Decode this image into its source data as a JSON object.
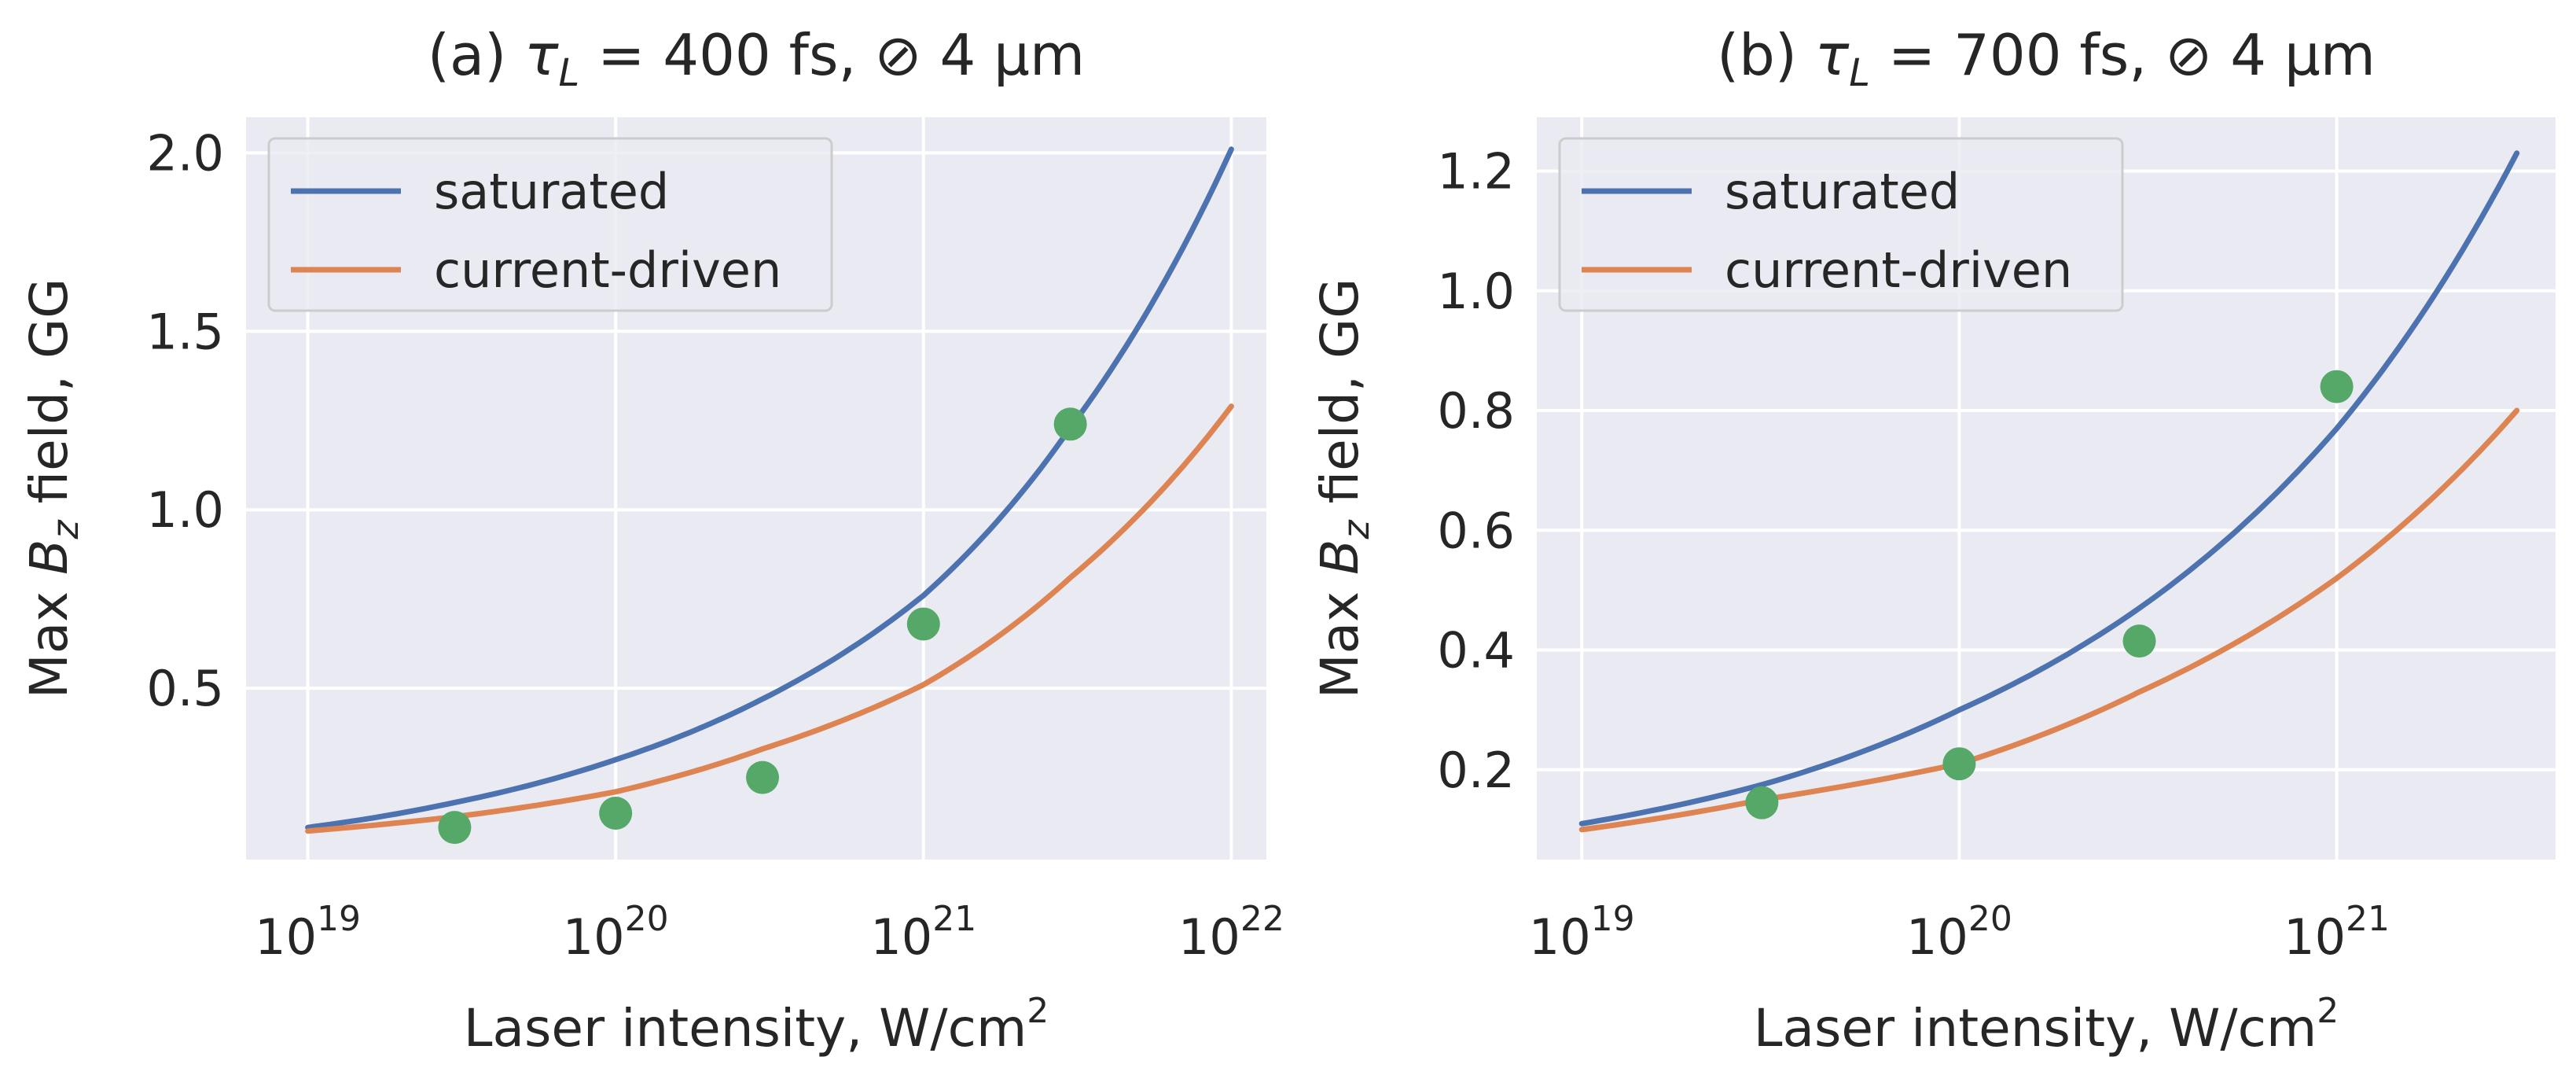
{
  "chart_data": [
    {
      "type": "line",
      "title": {
        "prefix": "(a) ",
        "tau": "τ",
        "tau_sub": "L",
        "rest": " = 400 fs, ⊘ 4 μm"
      },
      "xlabel": {
        "text": "Laser intensity, W/cm",
        "sup": "2"
      },
      "ylabel": {
        "prefix": "Max ",
        "var": "B",
        "var_sub": "z",
        "rest": " field, GG"
      },
      "xscale": "log",
      "xlim": [
        6.3e+18,
        1.3e+22
      ],
      "ylim": [
        0.02,
        2.1
      ],
      "xticks": [
        1e+19,
        1e+20,
        1e+21,
        1e+22
      ],
      "xtick_labels": [
        {
          "base": "10",
          "exp": "19"
        },
        {
          "base": "10",
          "exp": "20"
        },
        {
          "base": "10",
          "exp": "21"
        },
        {
          "base": "10",
          "exp": "22"
        }
      ],
      "yticks": [
        0.5,
        1.0,
        1.5,
        2.0
      ],
      "ytick_labels": [
        "0.5",
        "1.0",
        "1.5",
        "2.0"
      ],
      "grid": true,
      "legend_position": "top-left",
      "series": [
        {
          "name": "saturated",
          "color": "#4c72b0",
          "kind": "line",
          "x": [
            1e+19,
            3e+19,
            1e+20,
            3e+20,
            1e+21,
            3e+21,
            1e+22
          ],
          "y": [
            0.11,
            0.18,
            0.3,
            0.47,
            0.76,
            1.23,
            2.01
          ]
        },
        {
          "name": "current-driven",
          "color": "#dd8452",
          "kind": "line",
          "x": [
            1e+19,
            3e+19,
            1e+20,
            3e+20,
            1e+21,
            3e+21,
            1e+22
          ],
          "y": [
            0.1,
            0.14,
            0.21,
            0.33,
            0.51,
            0.81,
            1.29
          ]
        },
        {
          "name": "",
          "color": "#55a868",
          "kind": "scatter",
          "x": [
            3e+19,
            1e+20,
            3e+20,
            1e+21,
            3e+21
          ],
          "y": [
            0.11,
            0.15,
            0.25,
            0.68,
            1.24
          ]
        }
      ]
    },
    {
      "type": "line",
      "title": {
        "prefix": "(b) ",
        "tau": "τ",
        "tau_sub": "L",
        "rest": " = 700 fs, ⊘ 4 μm"
      },
      "xlabel": {
        "text": "Laser intensity, W/cm",
        "sup": "2"
      },
      "ylabel": {
        "prefix": "Max ",
        "var": "B",
        "var_sub": "z",
        "rest": " field, GG"
      },
      "xscale": "log",
      "xlim": [
        7.6e+18,
        3.8e+21
      ],
      "ylim": [
        0.05,
        1.29
      ],
      "xticks": [
        1e+19,
        1e+20,
        1e+21
      ],
      "xtick_labels": [
        {
          "base": "10",
          "exp": "19"
        },
        {
          "base": "10",
          "exp": "20"
        },
        {
          "base": "10",
          "exp": "21"
        }
      ],
      "yticks": [
        0.2,
        0.4,
        0.6,
        0.8,
        1.0,
        1.2
      ],
      "ytick_labels": [
        "0.2",
        "0.4",
        "0.6",
        "0.8",
        "1.0",
        "1.2"
      ],
      "grid": true,
      "legend_position": "top-left",
      "series": [
        {
          "name": "saturated",
          "color": "#4c72b0",
          "kind": "line",
          "x": [
            1e+19,
            3e+19,
            1e+20,
            3e+20,
            1e+21,
            3e+21
          ],
          "y": [
            0.11,
            0.175,
            0.3,
            0.47,
            0.77,
            1.23
          ]
        },
        {
          "name": "current-driven",
          "color": "#dd8452",
          "kind": "line",
          "x": [
            1e+19,
            3e+19,
            1e+20,
            3e+20,
            1e+21,
            3e+21
          ],
          "y": [
            0.1,
            0.15,
            0.21,
            0.33,
            0.52,
            0.8
          ]
        },
        {
          "name": "",
          "color": "#55a868",
          "kind": "scatter",
          "x": [
            3e+19,
            1e+20,
            3e+20,
            1e+21
          ],
          "y": [
            0.145,
            0.21,
            0.415,
            0.84
          ]
        }
      ]
    }
  ],
  "style": {
    "plot_bg": "#eaeaf2",
    "grid_color": "#ffffff",
    "text_color": "#262626"
  }
}
